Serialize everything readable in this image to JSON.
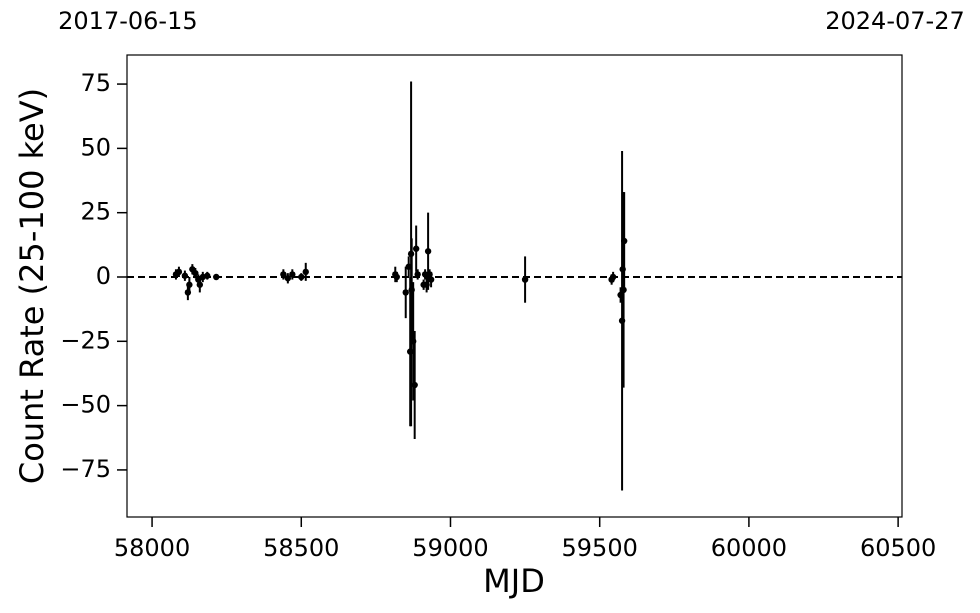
{
  "chart_data": {
    "type": "scatter",
    "xlabel": "MJD",
    "ylabel": "Count Rate (25-100 keV)",
    "xlim": [
      57916,
      60513
    ],
    "ylim": [
      -93.3,
      86.3
    ],
    "xticks": [
      58000,
      58500,
      59000,
      59500,
      60000,
      60500
    ],
    "yticks": [
      {
        "value": -75,
        "label": "−75"
      },
      {
        "value": -50,
        "label": "−50"
      },
      {
        "value": -25,
        "label": "−25"
      },
      0,
      25,
      50,
      75
    ],
    "x2ticks": [
      {
        "value": 57919,
        "label": "2017-06-15"
      },
      {
        "value": 60518,
        "label": "2024-07-27"
      }
    ],
    "reference_line": 0,
    "color": "#000000",
    "x": [
      58080,
      58090,
      58110,
      58120,
      58125,
      58135,
      58145,
      58155,
      58160,
      58170,
      58185,
      58215,
      58440,
      58455,
      58470,
      58500,
      58515,
      58815,
      58820,
      58850,
      58860,
      58865,
      58868,
      58870,
      58875,
      58880,
      58885,
      58890,
      58910,
      58915,
      58920,
      58925,
      58930,
      58935,
      59250,
      59540,
      59545,
      59570,
      59575,
      59577,
      59580,
      59582
    ],
    "y": [
      1,
      2,
      0.5,
      -6,
      -3,
      3,
      1.5,
      -1,
      -3,
      0,
      0.5,
      0,
      1,
      -0.5,
      1,
      0,
      2,
      1,
      0,
      -6,
      4,
      -29,
      9,
      -5,
      -25,
      -42,
      11,
      1,
      -3,
      1,
      -3,
      10,
      1,
      -1,
      -1,
      -1,
      0,
      -7,
      -17,
      3,
      -5,
      14
    ],
    "yerr": [
      2,
      2,
      2,
      3,
      3,
      2,
      2,
      2,
      3,
      2,
      1.5,
      1,
      2,
      2,
      2,
      1.5,
      3.5,
      3,
      2,
      10,
      4,
      29,
      67,
      20,
      23,
      21,
      9,
      2,
      2,
      2,
      3,
      15,
      2,
      3,
      9,
      2,
      2,
      3,
      66,
      30,
      38,
      19
    ]
  }
}
